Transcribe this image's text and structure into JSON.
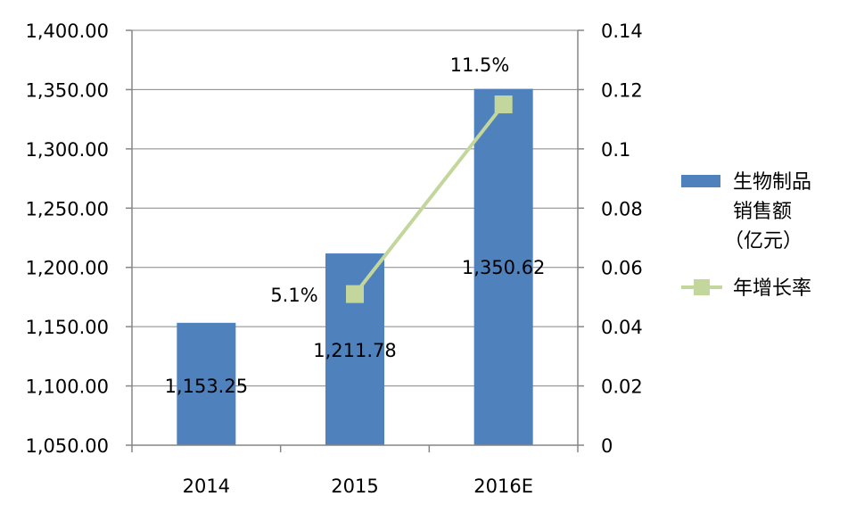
{
  "chart_data": {
    "type": "bar",
    "categories": [
      "2014",
      "2015",
      "2016E"
    ],
    "series": [
      {
        "name": "生物制品销售额（亿元）",
        "type": "bar",
        "axis": "left",
        "color": "#4F81BD",
        "values": [
          1153.25,
          1211.78,
          1350.62
        ],
        "labels": [
          "1,153.25",
          "1,211.78",
          "1,350.62"
        ]
      },
      {
        "name": "年增长率",
        "type": "line",
        "axis": "right",
        "color": "#C3D69B",
        "values": [
          null,
          0.051,
          0.115
        ],
        "labels": [
          "",
          "5.1%",
          "11.5%"
        ]
      }
    ],
    "y_left": {
      "min": 1050,
      "max": 1400,
      "ticks": [
        1050,
        1100,
        1150,
        1200,
        1250,
        1300,
        1350,
        1400
      ],
      "tick_labels": [
        "1,050.00",
        "1,100.00",
        "1,150.00",
        "1,200.00",
        "1,250.00",
        "1,300.00",
        "1,350.00",
        "1,400.00"
      ]
    },
    "y_right": {
      "min": 0,
      "max": 0.14,
      "ticks": [
        0,
        0.02,
        0.04,
        0.06,
        0.08,
        0.1,
        0.12,
        0.14
      ],
      "tick_labels": [
        "0",
        "0.02",
        "0.04",
        "0.06",
        "0.08",
        "0.1",
        "0.12",
        "0.14"
      ]
    },
    "grid": true,
    "legend_position": "right",
    "legend": [
      {
        "lines": [
          "生物制品",
          "销售额",
          "（亿元）"
        ],
        "marker": "bar",
        "color": "#4F81BD"
      },
      {
        "lines": [
          "年增长率"
        ],
        "marker": "line",
        "color": "#C3D69B"
      }
    ]
  }
}
